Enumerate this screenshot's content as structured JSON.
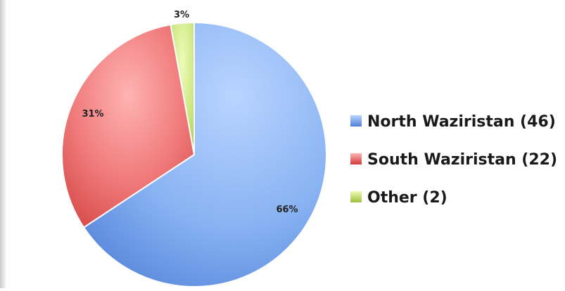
{
  "chart_data": {
    "type": "pie",
    "title": "",
    "slices": [
      {
        "label": "North Waziristan (46)",
        "value": 46,
        "percent_label": "66%",
        "color": "#7fa9ea"
      },
      {
        "label": "South Waziristan (22)",
        "value": 22,
        "percent_label": "31%",
        "color": "#e86b6b"
      },
      {
        "label": "Other (2)",
        "value": 2,
        "percent_label": "3%",
        "color": "#c6e37a"
      }
    ],
    "legend_position": "right",
    "grid": false
  }
}
